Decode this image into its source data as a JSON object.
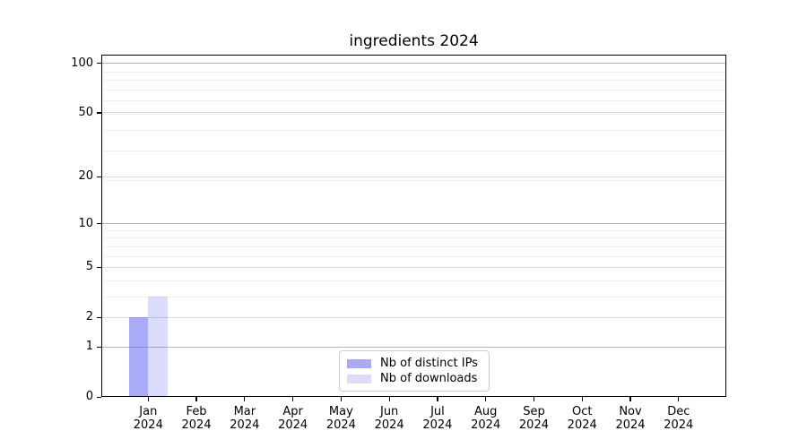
{
  "title": "ingredients 2024",
  "background": "#ffffff",
  "chart_data": {
    "type": "bar",
    "title": "ingredients 2024",
    "categories": [
      "Jan 2024",
      "Feb 2024",
      "Mar 2024",
      "Apr 2024",
      "May 2024",
      "Jun 2024",
      "Jul 2024",
      "Aug 2024",
      "Sep 2024",
      "Oct 2024",
      "Nov 2024",
      "Dec 2024"
    ],
    "month_labels": [
      "Jan",
      "Feb",
      "Mar",
      "Apr",
      "May",
      "Jun",
      "Jul",
      "Aug",
      "Sep",
      "Oct",
      "Nov",
      "Dec"
    ],
    "year_label": "2024",
    "series": [
      {
        "name": "Nb of distinct IPs",
        "values": [
          2,
          0,
          0,
          0,
          0,
          0,
          0,
          0,
          0,
          0,
          0,
          0
        ],
        "color": "rgba(100,100,240,0.55)",
        "legend_color": "#a9a9f5"
      },
      {
        "name": "Nb of downloads",
        "values": [
          3,
          0,
          0,
          0,
          0,
          0,
          0,
          0,
          0,
          0,
          0,
          0
        ],
        "color": "rgba(100,100,240,0.23)",
        "legend_color": "#dcdcf9"
      }
    ],
    "yticks": [
      0,
      1,
      2,
      5,
      10,
      20,
      50,
      100
    ],
    "scale": "log1p",
    "ylim": [
      0,
      113
    ],
    "xlabel": "",
    "ylabel": "",
    "grid": "both",
    "legend_position": "lower center inside"
  },
  "colors": {
    "axis": "#000000",
    "grid_major": "#b5b5b5",
    "grid_sub": "#dcdcdc",
    "grid_minor": "#efefef",
    "legend_border": "#cccccc",
    "text": "#000000"
  }
}
